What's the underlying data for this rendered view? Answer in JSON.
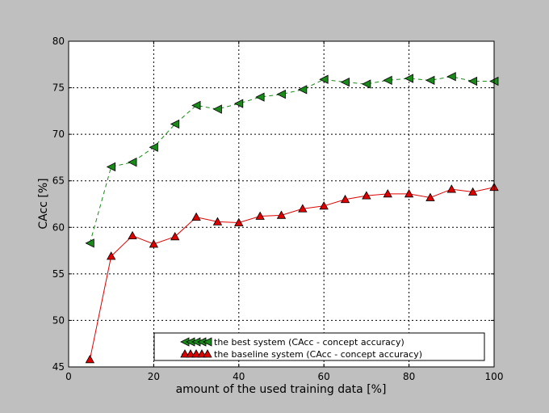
{
  "chart_data": {
    "type": "line",
    "title": "",
    "xlabel": "amount of the used training data [%]",
    "ylabel": "CAcc [%]",
    "xlim": [
      0,
      100
    ],
    "ylim": [
      45,
      80
    ],
    "xticks": [
      0,
      20,
      40,
      60,
      80,
      100
    ],
    "yticks": [
      45,
      50,
      55,
      60,
      65,
      70,
      75,
      80
    ],
    "grid": true,
    "legend_position": "lower-right",
    "series": [
      {
        "name": "the best system (CAcc - concept accuracy)",
        "color": "#1a8a1a",
        "line_style": "dashed",
        "marker": "left-triangle",
        "x": [
          5,
          10,
          15,
          20,
          25,
          30,
          35,
          40,
          45,
          50,
          55,
          60,
          65,
          70,
          75,
          80,
          85,
          90,
          95,
          100
        ],
        "values": [
          58.3,
          66.5,
          67.0,
          68.6,
          71.1,
          73.1,
          72.7,
          73.3,
          74.0,
          74.3,
          74.8,
          75.9,
          75.6,
          75.4,
          75.8,
          76.0,
          75.8,
          76.2,
          75.7,
          75.7
        ]
      },
      {
        "name": "the baseline system (CAcc - concept accuracy)",
        "color": "#e00000",
        "line_style": "solid",
        "marker": "up-triangle",
        "x": [
          5,
          10,
          15,
          20,
          25,
          30,
          35,
          40,
          45,
          50,
          55,
          60,
          65,
          70,
          75,
          80,
          85,
          90,
          95,
          100
        ],
        "values": [
          45.8,
          56.9,
          59.1,
          58.2,
          59.0,
          61.1,
          60.6,
          60.5,
          61.2,
          61.3,
          62.0,
          62.3,
          63.0,
          63.4,
          63.6,
          63.6,
          63.2,
          64.1,
          63.8,
          64.3
        ]
      }
    ]
  }
}
